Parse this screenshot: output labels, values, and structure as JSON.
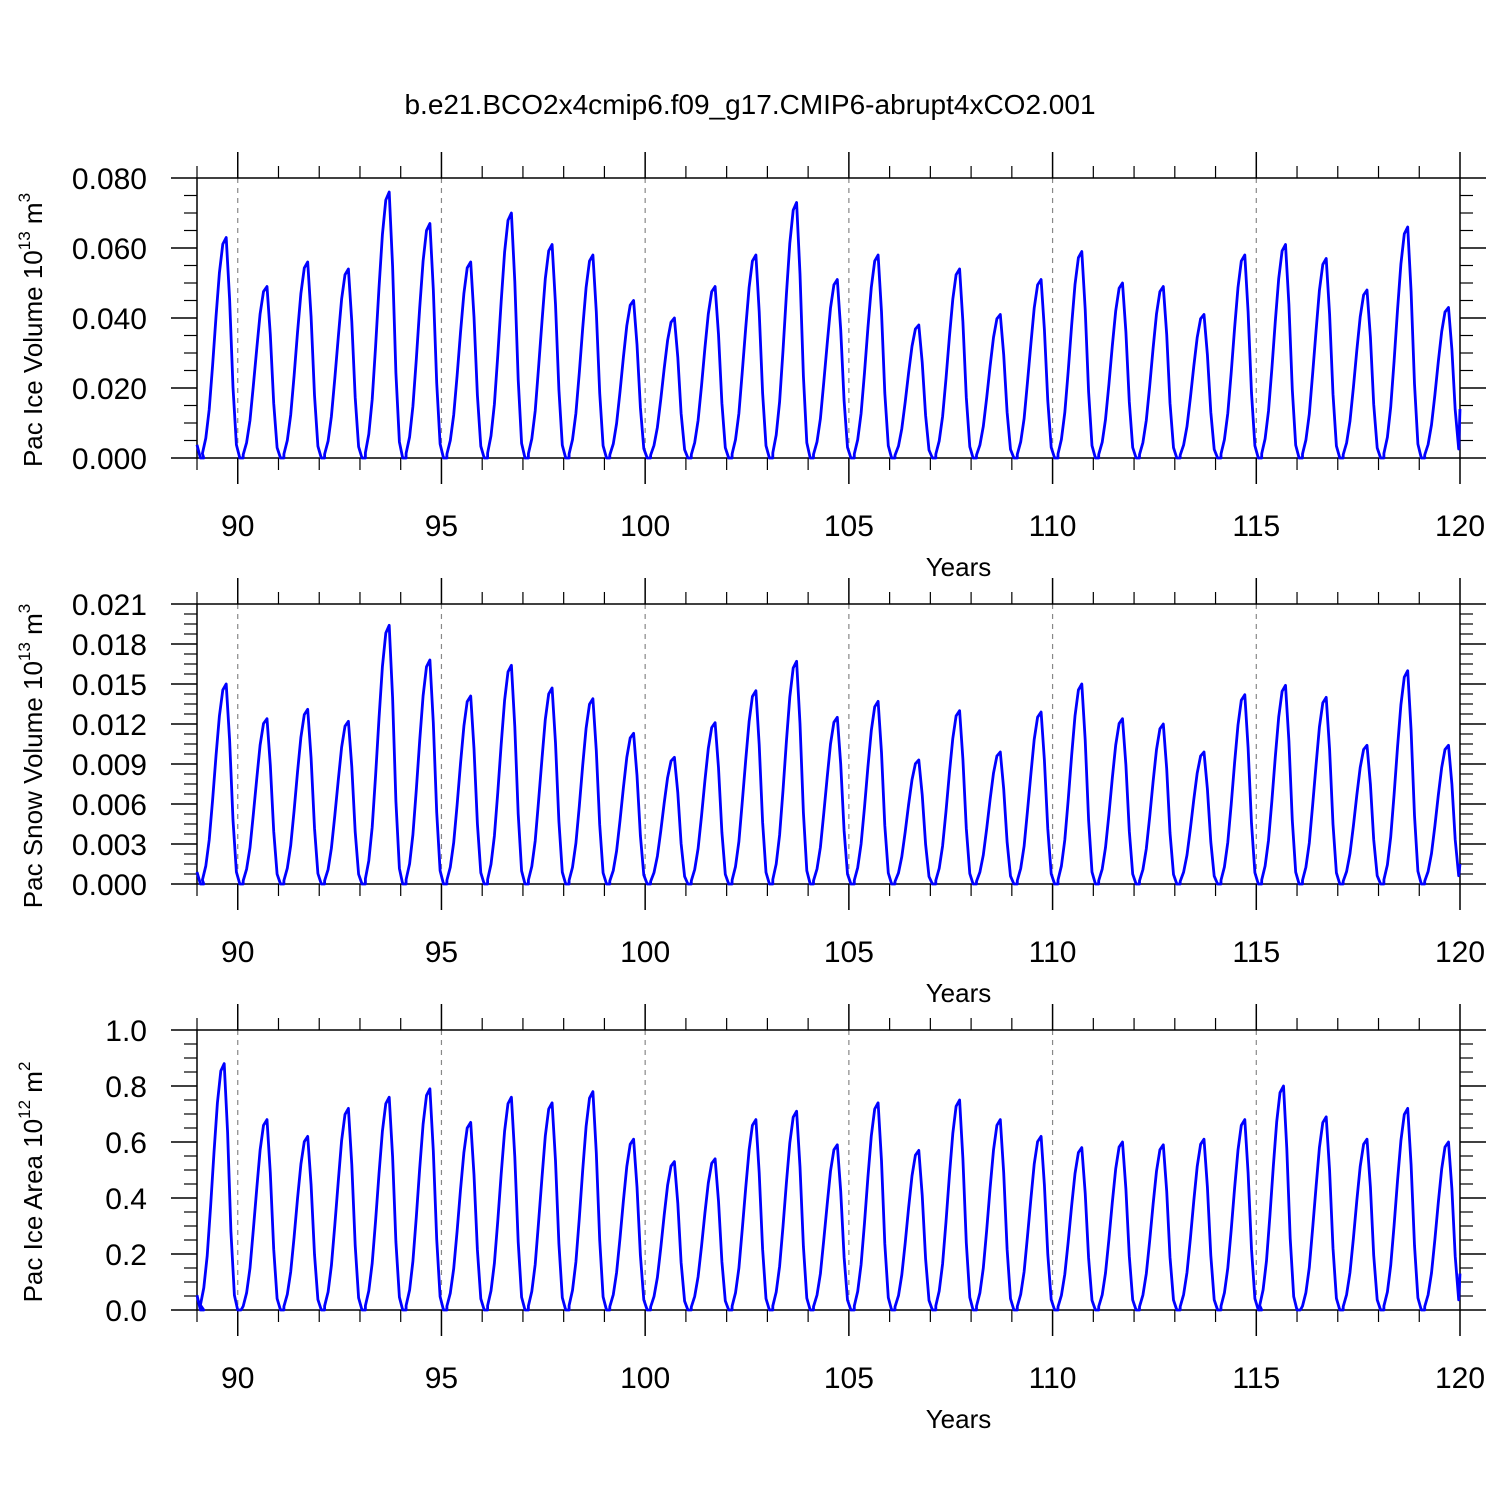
{
  "title": "b.e21.BCO2x4cmip6.f09_g17.CMIP6-abrupt4xCO2.001",
  "colors": {
    "series": "#0000ff",
    "axis": "#000000",
    "grid": "#888888"
  },
  "chart_data": [
    {
      "type": "line",
      "ylabel": "Pac Ice Volume 10",
      "ylabel_sup": "13",
      "ylabel_unit": " m",
      "ylabel_unit_sup": "3",
      "xlabel": "Years",
      "xlim": [
        89,
        120
      ],
      "ylim": [
        0,
        0.08
      ],
      "xticks": [
        "90",
        "95",
        "100",
        "105",
        "110",
        "115",
        "120"
      ],
      "yticks": [
        "0.000",
        "0.020",
        "0.040",
        "0.060",
        "0.080"
      ],
      "grid": "x-dashed",
      "series": [
        {
          "peak_years": [
            89.8,
            90.8,
            91.8,
            92.8,
            93.8,
            94.8,
            95.8,
            96.8,
            97.8,
            98.8,
            99.8,
            100.8,
            101.8,
            102.8,
            103.8,
            104.8,
            105.8,
            106.8,
            107.8,
            108.8,
            109.8,
            110.8,
            111.8,
            112.8,
            113.8,
            114.8,
            115.8,
            116.8,
            117.8,
            118.8,
            119.8
          ],
          "peak_values": [
            0.063,
            0.049,
            0.056,
            0.054,
            0.076,
            0.067,
            0.056,
            0.07,
            0.061,
            0.058,
            0.045,
            0.04,
            0.049,
            0.058,
            0.073,
            0.051,
            0.058,
            0.038,
            0.054,
            0.041,
            0.051,
            0.059,
            0.05,
            0.049,
            0.041,
            0.058,
            0.061,
            0.057,
            0.048,
            0.066,
            0.043
          ],
          "min_value": 0.0,
          "end_value": 0.014
        }
      ]
    },
    {
      "type": "line",
      "ylabel": "Pac Snow Volume 10",
      "ylabel_sup": "13",
      "ylabel_unit": " m",
      "ylabel_unit_sup": "3",
      "xlabel": "Years",
      "xlim": [
        89,
        120
      ],
      "ylim": [
        0,
        0.021
      ],
      "xticks": [
        "90",
        "95",
        "100",
        "105",
        "110",
        "115",
        "120"
      ],
      "yticks": [
        "0.000",
        "0.003",
        "0.006",
        "0.009",
        "0.012",
        "0.015",
        "0.018",
        "0.021"
      ],
      "grid": "x-dashed",
      "series": [
        {
          "peak_years": [
            89.8,
            90.8,
            91.8,
            92.8,
            93.8,
            94.8,
            95.8,
            96.8,
            97.8,
            98.8,
            99.8,
            100.8,
            101.8,
            102.8,
            103.8,
            104.8,
            105.8,
            106.8,
            107.8,
            108.8,
            109.8,
            110.8,
            111.8,
            112.8,
            113.8,
            114.8,
            115.8,
            116.8,
            117.8,
            118.8,
            119.8
          ],
          "peak_values": [
            0.015,
            0.0124,
            0.0131,
            0.0122,
            0.0194,
            0.0168,
            0.0141,
            0.0164,
            0.0147,
            0.0139,
            0.0113,
            0.0095,
            0.0121,
            0.0145,
            0.0167,
            0.0125,
            0.0137,
            0.0093,
            0.013,
            0.0099,
            0.0129,
            0.015,
            0.0124,
            0.012,
            0.0099,
            0.0142,
            0.0149,
            0.014,
            0.0104,
            0.016,
            0.0104
          ],
          "min_value": 0.0,
          "end_value": 0.0015
        }
      ]
    },
    {
      "type": "line",
      "ylabel": "Pac Ice Area 10",
      "ylabel_sup": "12",
      "ylabel_unit": " m",
      "ylabel_unit_sup": "2",
      "xlabel": "Years",
      "xlim": [
        89,
        120
      ],
      "ylim": [
        0,
        1.0
      ],
      "xticks": [
        "90",
        "95",
        "100",
        "105",
        "110",
        "115",
        "120"
      ],
      "yticks": [
        "0.0",
        "0.2",
        "0.4",
        "0.6",
        "0.8",
        "1.0"
      ],
      "grid": "x-dashed",
      "series": [
        {
          "peak_years": [
            89.75,
            90.8,
            91.8,
            92.8,
            93.8,
            94.8,
            95.8,
            96.8,
            97.8,
            98.8,
            99.8,
            100.8,
            101.8,
            102.8,
            103.8,
            104.8,
            105.8,
            106.8,
            107.8,
            108.8,
            109.8,
            110.8,
            111.8,
            112.8,
            113.8,
            114.8,
            115.75,
            116.8,
            117.8,
            118.8,
            119.8
          ],
          "peak_values": [
            0.88,
            0.68,
            0.62,
            0.72,
            0.76,
            0.79,
            0.67,
            0.76,
            0.74,
            0.78,
            0.61,
            0.53,
            0.54,
            0.68,
            0.71,
            0.59,
            0.74,
            0.57,
            0.75,
            0.68,
            0.62,
            0.58,
            0.6,
            0.59,
            0.61,
            0.68,
            0.8,
            0.69,
            0.61,
            0.72,
            0.6
          ],
          "min_value": 0.0,
          "end_value": 0.13
        }
      ]
    }
  ]
}
